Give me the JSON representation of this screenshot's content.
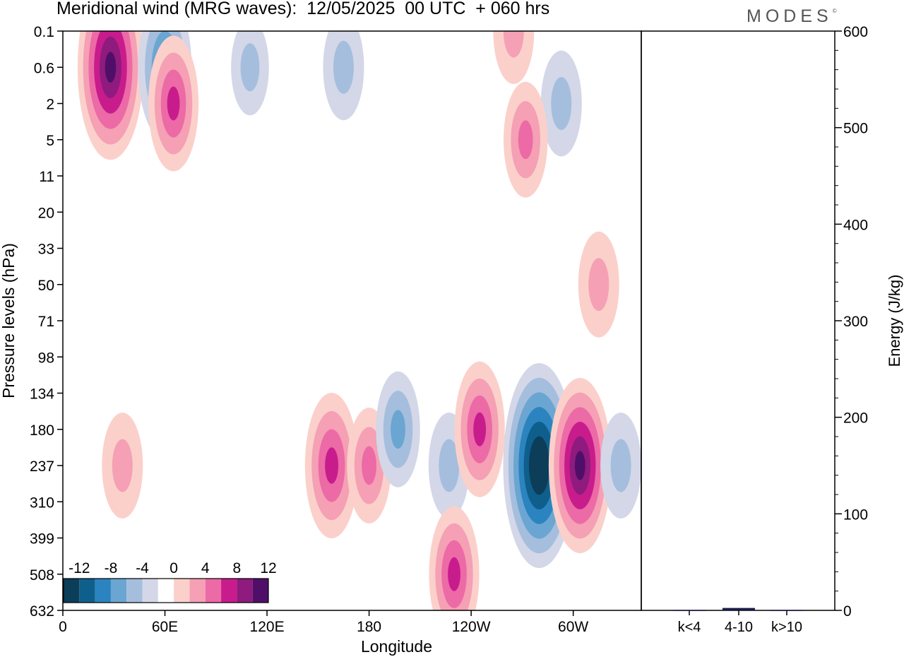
{
  "title": "Meridional wind (MRG waves):  12/05/2025  00 UTC  + 060 hrs",
  "logo": "MODES",
  "colors": {
    "neg": [
      "#0c3e5a",
      "#0f5f8c",
      "#2b84bf",
      "#6aa6d1",
      "#a5bedd",
      "#d3d7e8"
    ],
    "pos": [
      "#fbd0cb",
      "#f5a0b4",
      "#ec6aa6",
      "#c81c8c",
      "#8e1b7d",
      "#4f0f68"
    ],
    "axis": "#000000",
    "energy_bar": "#1a1a4a"
  },
  "chart_data": [
    {
      "type": "heatmap",
      "subtype": "filled-contour",
      "title": "Meridional wind (MRG waves):  12/05/2025  00 UTC  + 060 hrs",
      "xlabel": "Longitude",
      "ylabel": "Pressure levels (hPa)",
      "x_ticks": [
        "0",
        "60E",
        "120E",
        "180",
        "120W",
        "60W"
      ],
      "y_ticks": [
        "0.1",
        "0.6",
        "2",
        "5",
        "11",
        "20",
        "33",
        "50",
        "71",
        "98",
        "134",
        "180",
        "237",
        "310",
        "399",
        "508",
        "632"
      ],
      "xlim": [
        0,
        340
      ],
      "colorbar": {
        "labels": [
          "-12",
          "-8",
          "-4",
          "0",
          "4",
          "8",
          "12"
        ],
        "levels": [
          -14,
          -12,
          -10,
          -8,
          -6,
          -4,
          -2,
          2,
          4,
          6,
          8,
          10,
          12,
          14
        ]
      },
      "features": [
        {
          "lon": 28,
          "level": "0.6",
          "value": 13
        },
        {
          "lon": 60,
          "level": "0.6",
          "value": -9
        },
        {
          "lon": 65,
          "level": "2",
          "value": 8
        },
        {
          "lon": 110,
          "level": "0.6",
          "value": -4
        },
        {
          "lon": 165,
          "level": "0.6",
          "value": -5
        },
        {
          "lon": 293,
          "level": "2",
          "value": -5
        },
        {
          "lon": 272,
          "level": "5",
          "value": 6
        },
        {
          "lon": 265,
          "level": "0.1",
          "value": 5
        },
        {
          "lon": 35,
          "level": "237",
          "value": 5
        },
        {
          "lon": 158,
          "level": "237",
          "value": 9
        },
        {
          "lon": 180,
          "level": "237",
          "value": 6
        },
        {
          "lon": 197,
          "level": "180",
          "value": -6
        },
        {
          "lon": 227,
          "level": "237",
          "value": -5
        },
        {
          "lon": 245,
          "level": "180",
          "value": 8
        },
        {
          "lon": 230,
          "level": "508",
          "value": 8
        },
        {
          "lon": 280,
          "level": "237",
          "value": -15
        },
        {
          "lon": 304,
          "level": "237",
          "value": 12
        },
        {
          "lon": 328,
          "level": "237",
          "value": -5
        },
        {
          "lon": 315,
          "level": "50",
          "value": 5
        }
      ]
    },
    {
      "type": "bar",
      "categories": [
        "k<4",
        "4-10",
        "k>10"
      ],
      "values": [
        0.5,
        2.5,
        0.5
      ],
      "ylabel": "Energy (J/kg)",
      "ylim": [
        0,
        600
      ],
      "y_ticks": [
        "0",
        "100",
        "200",
        "300",
        "400",
        "500",
        "600"
      ]
    }
  ]
}
